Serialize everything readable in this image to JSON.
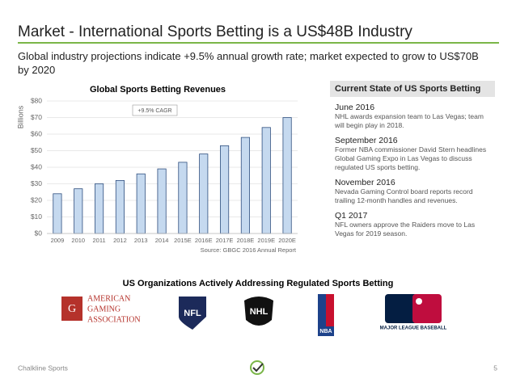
{
  "title": "Market - International Sports Betting is a US$48B Industry",
  "subtitle": "Global industry projections indicate +9.5% annual growth rate; market expected to grow to US$70B by 2020",
  "chart_data": {
    "type": "bar",
    "title": "Global Sports Betting Revenues",
    "y_label": "Billions",
    "annotation": "+9.5% CAGR",
    "source": "Source: GBGC 2016 Annual Report",
    "categories": [
      "2009",
      "2010",
      "2011",
      "2012",
      "2013",
      "2014",
      "2015E",
      "2016E",
      "2017E",
      "2018E",
      "2019E",
      "2020E"
    ],
    "values": [
      24,
      27,
      30,
      32,
      36,
      39,
      43,
      48,
      53,
      58,
      64,
      70
    ],
    "color": "#c5d9ef",
    "edge_color": "#2f4f7f",
    "ylim": [
      0,
      80
    ],
    "yticks": [
      {
        "value": 0,
        "label": "$0"
      },
      {
        "value": 10,
        "label": "$10"
      },
      {
        "value": 20,
        "label": "$20"
      },
      {
        "value": 30,
        "label": "$30"
      },
      {
        "value": 40,
        "label": "$40"
      },
      {
        "value": 50,
        "label": "$50"
      },
      {
        "value": 60,
        "label": "$60"
      },
      {
        "value": 70,
        "label": "$70"
      },
      {
        "value": 80,
        "label": "$80"
      }
    ],
    "grid": true
  },
  "panel": {
    "title": "Current State of US Sports Betting",
    "entries": [
      {
        "date": "June 2016",
        "text": "NHL awards expansion team to Las Vegas; team will begin play in 2018."
      },
      {
        "date": "September 2016",
        "text": "Former NBA commissioner David Stern headlines Global Gaming Expo in Las Vegas to discuss regulated US sports betting."
      },
      {
        "date": "November 2016",
        "text": "Nevada Gaming Control board reports record trailing 12-month handles and revenues."
      },
      {
        "date": "Q1 2017",
        "text": "NFL owners approve the Raiders move to Las Vegas for 2019 season."
      }
    ]
  },
  "organizations": {
    "title": "US Organizations Actively Addressing Regulated Sports Betting",
    "aga": [
      "AMERICAN",
      "GAMING",
      "ASSOCIATION"
    ],
    "nfl": "NFL",
    "nhl": "NHL",
    "nba": "NBA",
    "mlb": "MAJOR LEAGUE BASEBALL"
  },
  "footer": {
    "left": "Chalkline Sports",
    "page": "5"
  }
}
